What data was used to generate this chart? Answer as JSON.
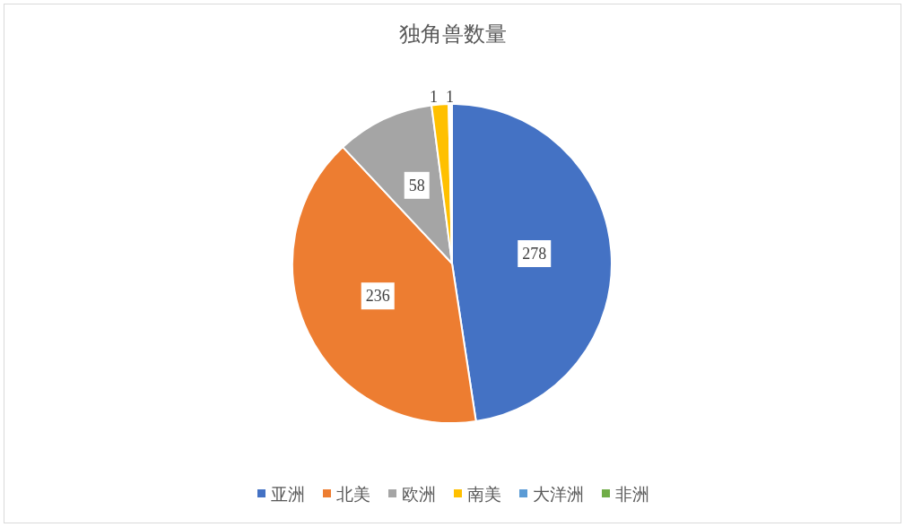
{
  "chart_data": {
    "type": "pie",
    "title": "独角兽数量",
    "categories": [
      "亚洲",
      "北美",
      "欧洲",
      "南美",
      "大洋洲",
      "非洲"
    ],
    "values": [
      278,
      236,
      58,
      10,
      1,
      1
    ],
    "colors": [
      "#4472c4",
      "#ed7d31",
      "#a5a5a5",
      "#ffc000",
      "#5b9bd5",
      "#70ad47"
    ],
    "value_labels": [
      "278",
      "236",
      "58",
      null,
      "1",
      "1"
    ],
    "legend": "bottom"
  }
}
